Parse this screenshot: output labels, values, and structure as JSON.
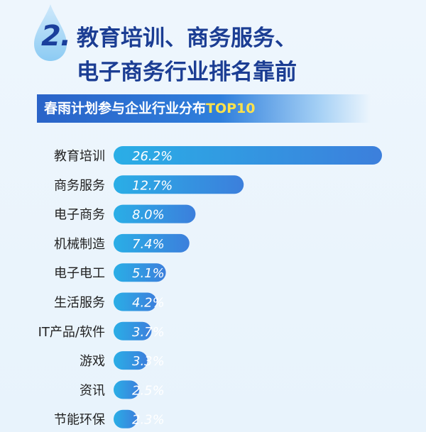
{
  "heading": {
    "number": "2.",
    "line1": "教育培训、商务服务、",
    "line2": "电子商务行业排名靠前"
  },
  "banner": {
    "title": "春雨计划参与企业行业分布",
    "highlight": "TOP10"
  },
  "colors": {
    "accent": "#1b3d93",
    "highlight": "#ffe24a",
    "bar_start": "#2aaee6",
    "bar_end": "#3c7fdc"
  },
  "chart_data": {
    "type": "bar",
    "orientation": "horizontal",
    "title": "春雨计划参与企业行业分布TOP10",
    "categories": [
      "教育培训",
      "商务服务",
      "电子商务",
      "机械制造",
      "电子电工",
      "生活服务",
      "IT产品/软件",
      "游戏",
      "资讯",
      "节能环保"
    ],
    "values": [
      26.2,
      12.7,
      8.0,
      7.4,
      5.1,
      4.2,
      3.7,
      3.3,
      2.5,
      2.3
    ],
    "value_labels": [
      "26.2%",
      "12.7%",
      "8.0%",
      "7.4%",
      "5.1%",
      "4.2%",
      "3.7%",
      "3.3%",
      "2.5%",
      "2.3%"
    ],
    "unit": "%"
  }
}
